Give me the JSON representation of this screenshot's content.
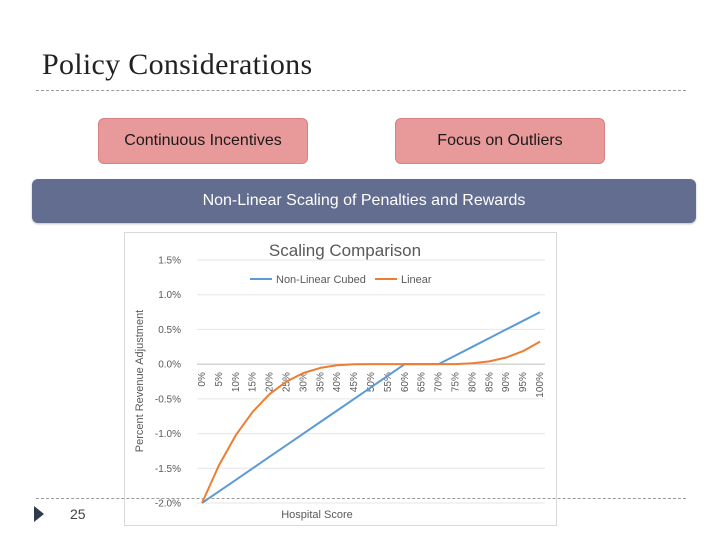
{
  "slide": {
    "title": "Policy Considerations",
    "pill_left": "Continuous Incentives",
    "pill_right": "Focus on Outliers",
    "banner": "Non-Linear Scaling of Penalties and Rewards",
    "page_number": "25"
  },
  "colors": {
    "pill": "#e8999a",
    "banner": "#626d8f",
    "series_nonlinear": "#5b9bd5",
    "series_linear": "#ed7d31"
  },
  "chart_data": {
    "type": "line",
    "title": "Scaling Comparison",
    "xlabel": "Hospital Score",
    "ylabel": "Percent Revenue Adjustment",
    "categories": [
      "0%",
      "5%",
      "10%",
      "15%",
      "20%",
      "25%",
      "30%",
      "35%",
      "40%",
      "45%",
      "50%",
      "55%",
      "60%",
      "65%",
      "70%",
      "75%",
      "80%",
      "85%",
      "90%",
      "95%",
      "100%"
    ],
    "yticks": [
      "1.5%",
      "1.0%",
      "0.5%",
      "0.0%",
      "-0.5%",
      "-1.0%",
      "-1.5%",
      "-2.0%"
    ],
    "ylim": [
      -2.0,
      1.5
    ],
    "gridlines": true,
    "legend_position": "top",
    "series": [
      {
        "name": "Non-Linear Cubed",
        "values": [
          -2.0,
          -1.833,
          -1.667,
          -1.5,
          -1.333,
          -1.167,
          -1.0,
          -0.833,
          -0.667,
          -0.5,
          -0.333,
          -0.167,
          0.0,
          0.0,
          0.0,
          0.125,
          0.25,
          0.375,
          0.5,
          0.625,
          0.75
        ]
      },
      {
        "name": "Linear",
        "values": [
          -2.0,
          -1.458,
          -1.024,
          -0.686,
          -0.432,
          -0.25,
          -0.128,
          -0.054,
          -0.016,
          -0.002,
          0.0,
          0.0,
          0.0,
          0.0,
          0.0,
          0.001,
          0.012,
          0.04,
          0.096,
          0.188,
          0.325
        ]
      }
    ]
  }
}
